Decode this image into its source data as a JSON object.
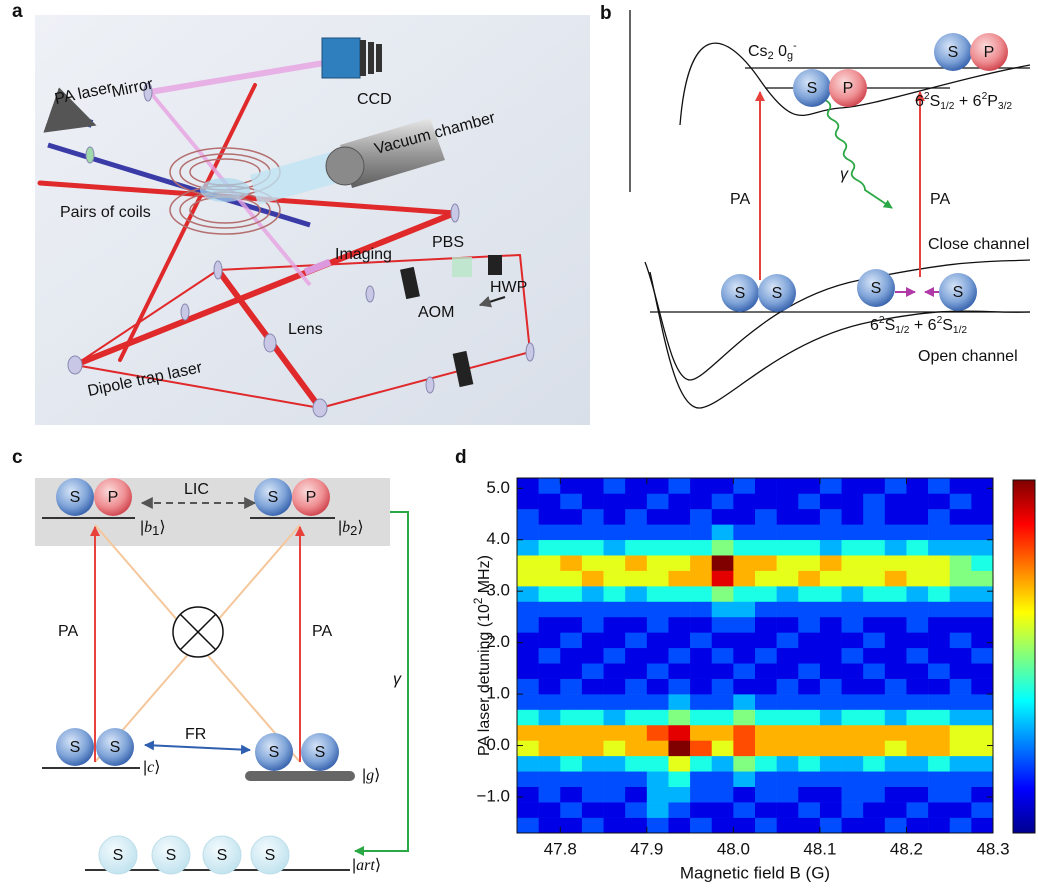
{
  "panel_a": {
    "letter": "a",
    "pa_laser": "PA laser",
    "mirror": "Mirror",
    "ccd": "CCD",
    "vacuum": "Vacuum chamber",
    "coils": "Pairs of coils",
    "imaging": "Imaging",
    "pbs": "PBS",
    "hwp": "HWP",
    "aom": "AOM",
    "lens": "Lens",
    "dipole": "Dipole trap laser"
  },
  "panel_b": {
    "letter": "b",
    "cs_label": [
      {
        "t": "Cs"
      },
      {
        "sub": "2"
      },
      {
        "t": " 0"
      },
      {
        "sub": "g"
      },
      {
        "sup": "-"
      }
    ],
    "upper_asymptote": [
      {
        "t": "6"
      },
      {
        "sup": "2"
      },
      {
        "t": "S"
      },
      {
        "sub": "1/2"
      },
      {
        "t": " + 6"
      },
      {
        "sup": "2"
      },
      {
        "t": "P"
      },
      {
        "sub": "3/2"
      }
    ],
    "lower_asymptote": [
      {
        "t": "6"
      },
      {
        "sup": "2"
      },
      {
        "t": "S"
      },
      {
        "sub": "1/2"
      },
      {
        "t": " + 6"
      },
      {
        "sup": "2"
      },
      {
        "t": "S"
      },
      {
        "sub": "1/2"
      }
    ],
    "pa_left": "PA",
    "pa_right": "PA",
    "gamma": "γ",
    "close_channel": "Close channel",
    "open_channel": "Open channel",
    "atoms": [
      "S",
      "P",
      "S",
      "P",
      "S",
      "S",
      "S",
      "S"
    ]
  },
  "panel_c": {
    "letter": "c",
    "lic": "LIC",
    "fr": "FR",
    "pa_left": "PA",
    "pa_right": "PA",
    "gamma": "γ",
    "ket_b1": [
      {
        "t": "|"
      },
      {
        "i": "b"
      },
      {
        "sub": "1"
      },
      {
        "t": "⟩"
      }
    ],
    "ket_b2": [
      {
        "t": "|"
      },
      {
        "i": "b"
      },
      {
        "sub": "2"
      },
      {
        "t": "⟩"
      }
    ],
    "ket_c": [
      {
        "t": "|"
      },
      {
        "i": "c"
      },
      {
        "t": "⟩"
      }
    ],
    "ket_g": [
      {
        "t": "|"
      },
      {
        "i": "g"
      },
      {
        "t": "⟩"
      }
    ],
    "ket_art": [
      {
        "t": "|"
      },
      {
        "i": "art"
      },
      {
        "t": "⟩"
      }
    ],
    "atoms": [
      "S",
      "P",
      "S",
      "P",
      "S",
      "S",
      "S",
      "S"
    ],
    "faded_atoms": [
      "S",
      "S",
      "S",
      "S"
    ]
  },
  "chart_data": {
    "type": "heatmap",
    "letter": "d",
    "colormap": "jet",
    "zlim": [
      0,
      10
    ],
    "x_label": "Magnetic field B (G)",
    "y_label": [
      {
        "t": "PA laser detuning (10"
      },
      {
        "sup": "2"
      },
      {
        "t": " MHz)"
      }
    ],
    "xlim": [
      47.75,
      48.3
    ],
    "ylim": [
      -1.7,
      5.2
    ],
    "xticks": [
      47.8,
      47.9,
      {
        "value": 48,
        "label": "48.0"
      },
      48.1,
      48.2,
      48.3
    ],
    "yticks": [
      {
        "value": -1,
        "label": "−1.0"
      },
      {
        "value": 0,
        "label": "0.0"
      },
      {
        "value": 1,
        "label": "1.0"
      },
      {
        "value": 2,
        "label": "2.0"
      },
      {
        "value": 3,
        "label": "3.0"
      },
      {
        "value": 4,
        "label": "4.0"
      },
      {
        "value": 5,
        "label": "5.0"
      }
    ],
    "xbins": [
      47.75,
      47.775,
      47.8,
      47.825,
      47.85,
      47.875,
      47.9,
      47.925,
      47.95,
      47.975,
      48.0,
      48.025,
      48.05,
      48.075,
      48.1,
      48.125,
      48.15,
      48.175,
      48.2,
      48.225,
      48.25,
      48.275,
      48.3
    ],
    "ybins": [
      -1.7,
      -1.4,
      -1.1,
      -0.8,
      -0.5,
      -0.2,
      0.1,
      0.4,
      0.7,
      1.0,
      1.3,
      1.6,
      1.9,
      2.2,
      2.5,
      2.8,
      3.1,
      3.4,
      3.7,
      4.0,
      4.3,
      4.6,
      4.9,
      5.2
    ],
    "z": [
      [
        2,
        1,
        1,
        2,
        1,
        1,
        2,
        1,
        2,
        1,
        1,
        2,
        1,
        1,
        2,
        1,
        1,
        2,
        1,
        1,
        2,
        1
      ],
      [
        1,
        1,
        2,
        1,
        1,
        2,
        3,
        2,
        1,
        1,
        2,
        1,
        1,
        2,
        1,
        2,
        1,
        1,
        2,
        1,
        1,
        2
      ],
      [
        1,
        2,
        1,
        2,
        2,
        1,
        3,
        3,
        2,
        2,
        1,
        2,
        2,
        1,
        1,
        2,
        2,
        1,
        1,
        2,
        2,
        1
      ],
      [
        2,
        2,
        2,
        2,
        2,
        2,
        3,
        4,
        2,
        2,
        3,
        2,
        2,
        2,
        2,
        2,
        2,
        2,
        2,
        2,
        2,
        2
      ],
      [
        3,
        3,
        4,
        3,
        3,
        4,
        4,
        6,
        4,
        3,
        5,
        4,
        3,
        4,
        3,
        3,
        4,
        3,
        3,
        4,
        3,
        3
      ],
      [
        6,
        7,
        7,
        7,
        6,
        7,
        7,
        10,
        8,
        6,
        8,
        7,
        7,
        7,
        7,
        7,
        7,
        6,
        7,
        7,
        6,
        6
      ],
      [
        7,
        7,
        7,
        7,
        7,
        7,
        8,
        9,
        7,
        7,
        8,
        7,
        7,
        7,
        7,
        7,
        7,
        7,
        7,
        7,
        6,
        6
      ],
      [
        4,
        3,
        4,
        4,
        3,
        4,
        4,
        5,
        4,
        4,
        5,
        4,
        4,
        4,
        3,
        4,
        4,
        3,
        4,
        4,
        3,
        3
      ],
      [
        2,
        2,
        2,
        2,
        2,
        2,
        2,
        3,
        2,
        2,
        3,
        2,
        2,
        2,
        2,
        2,
        2,
        2,
        2,
        2,
        2,
        2
      ],
      [
        2,
        1,
        2,
        1,
        1,
        2,
        1,
        2,
        1,
        2,
        1,
        1,
        2,
        1,
        2,
        1,
        1,
        2,
        1,
        1,
        2,
        1
      ],
      [
        1,
        1,
        1,
        2,
        1,
        1,
        2,
        1,
        1,
        1,
        2,
        1,
        1,
        2,
        1,
        1,
        2,
        1,
        1,
        2,
        1,
        1
      ],
      [
        1,
        2,
        1,
        1,
        2,
        1,
        1,
        2,
        1,
        2,
        1,
        2,
        1,
        1,
        1,
        2,
        1,
        1,
        2,
        1,
        1,
        2
      ],
      [
        1,
        1,
        2,
        1,
        1,
        2,
        1,
        1,
        2,
        1,
        1,
        1,
        2,
        1,
        1,
        1,
        2,
        1,
        1,
        1,
        2,
        1
      ],
      [
        2,
        1,
        1,
        2,
        1,
        1,
        2,
        1,
        1,
        2,
        2,
        1,
        1,
        2,
        1,
        2,
        1,
        1,
        2,
        1,
        1,
        1
      ],
      [
        2,
        2,
        2,
        2,
        2,
        2,
        2,
        2,
        2,
        3,
        3,
        2,
        2,
        2,
        2,
        2,
        2,
        2,
        2,
        2,
        2,
        2
      ],
      [
        3,
        4,
        4,
        3,
        4,
        3,
        4,
        4,
        4,
        5,
        4,
        4,
        3,
        4,
        4,
        3,
        4,
        4,
        3,
        4,
        3,
        3
      ],
      [
        6,
        6,
        6,
        7,
        6,
        6,
        6,
        7,
        7,
        9,
        7,
        6,
        6,
        7,
        6,
        6,
        6,
        7,
        6,
        6,
        5,
        5
      ],
      [
        6,
        6,
        7,
        6,
        6,
        7,
        6,
        6,
        7,
        10,
        7,
        7,
        6,
        6,
        7,
        6,
        6,
        6,
        6,
        6,
        5,
        4
      ],
      [
        3,
        4,
        4,
        4,
        3,
        4,
        4,
        4,
        4,
        5,
        4,
        4,
        4,
        4,
        3,
        4,
        4,
        3,
        4,
        3,
        3,
        3
      ],
      [
        2,
        2,
        2,
        2,
        2,
        2,
        2,
        2,
        2,
        3,
        2,
        2,
        2,
        2,
        2,
        2,
        2,
        2,
        2,
        2,
        2,
        2
      ],
      [
        2,
        1,
        1,
        2,
        1,
        2,
        1,
        1,
        2,
        1,
        1,
        2,
        1,
        1,
        2,
        1,
        2,
        1,
        1,
        2,
        1,
        1
      ],
      [
        1,
        1,
        2,
        1,
        1,
        1,
        2,
        1,
        1,
        2,
        1,
        1,
        1,
        2,
        1,
        1,
        2,
        1,
        1,
        1,
        2,
        1
      ],
      [
        1,
        2,
        1,
        1,
        2,
        1,
        1,
        2,
        1,
        1,
        2,
        1,
        1,
        1,
        2,
        1,
        1,
        2,
        1,
        2,
        1,
        1
      ]
    ]
  }
}
